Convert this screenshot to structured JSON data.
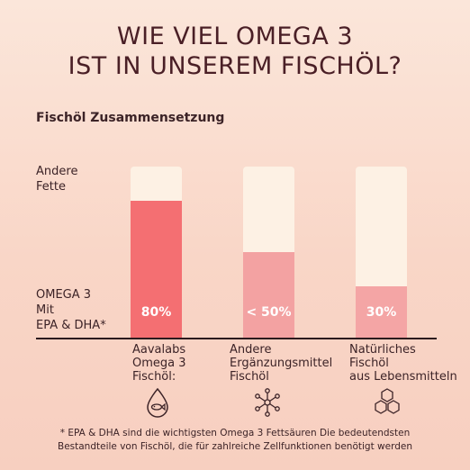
{
  "headline": {
    "line1": "WIE VIEL OMEGA 3",
    "line2": "IST IN UNSEREM FISCHÖL?"
  },
  "chart_data": {
    "type": "bar",
    "title": "Fischöl Zusammensetzung",
    "categories": [
      "Aavalabs\nOmega 3\nFischöl:",
      "Andere\nErgänzungsmittel\nFischöl",
      "Natürliches\nFischöl\naus Lebensmitteln"
    ],
    "series": [
      {
        "name": "OMEGA 3\nMit\nEPA & DHA*",
        "values": [
          80,
          50,
          30
        ],
        "colors": [
          "#f46f72",
          "#f3a2a2",
          "#f4a5a5"
        ]
      },
      {
        "name": "Andere\nFette",
        "values": [
          20,
          50,
          70
        ],
        "color": "#fdf1e4"
      }
    ],
    "data_labels": [
      "80%",
      "< 50%",
      "30%"
    ],
    "ylim": [
      0,
      100
    ],
    "stacked": true
  },
  "icons": [
    "drop-with-fish-icon",
    "molecule-icon",
    "hexagon-cluster-icon"
  ],
  "footnote": {
    "line1": "* EPA & DHA sind die wichtigsten Omega 3 Fettsäuren Die bedeutendsten",
    "line2": "Bestandteile von Fischöl, die für zahlreiche Zellfunktionen benötigt werden"
  }
}
